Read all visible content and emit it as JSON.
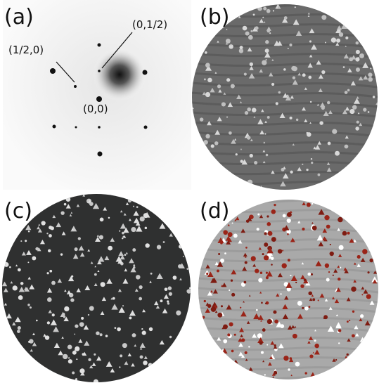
{
  "panels": [
    {
      "label": "(a)",
      "annotations": [
        "(1/2,0)",
        "(0,1/2)",
        "(0,0)"
      ]
    },
    {
      "label": "(b)"
    },
    {
      "label": "(c)"
    },
    {
      "label": "(d)"
    }
  ]
}
